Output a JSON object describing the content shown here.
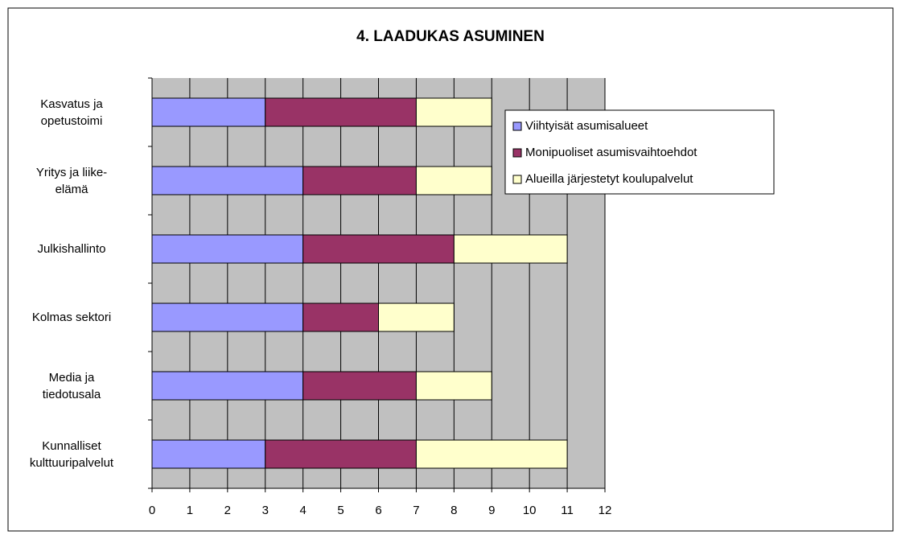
{
  "chart_data": {
    "type": "stacked-barh",
    "title": "4. LAADUKAS ASUMINEN",
    "categories": [
      "Kasvatus ja\nopetustoimi",
      "Yritys ja liike-\nelämä",
      "Julkishallinto",
      "Kolmas sektori",
      "Media ja\ntiedotusala",
      "Kunnalliset\nkulttuuripalvelut"
    ],
    "series": [
      {
        "name": "Viihtyisät asumisalueet",
        "color": "#9999ff",
        "values": [
          3,
          4,
          4,
          4,
          4,
          3
        ]
      },
      {
        "name": "Monipuoliset asumisvaihtoehdot",
        "color": "#993366",
        "values": [
          4,
          3,
          4,
          2,
          3,
          4
        ]
      },
      {
        "name": "Alueilla järjestetyt koulupalvelut",
        "color": "#ffffcc",
        "values": [
          2,
          2,
          3,
          2,
          2,
          4
        ]
      }
    ],
    "xlim": [
      0,
      12
    ],
    "xticks": [
      0,
      1,
      2,
      3,
      4,
      5,
      6,
      7,
      8,
      9,
      10,
      11,
      12
    ],
    "grid": true,
    "legend": "right"
  }
}
